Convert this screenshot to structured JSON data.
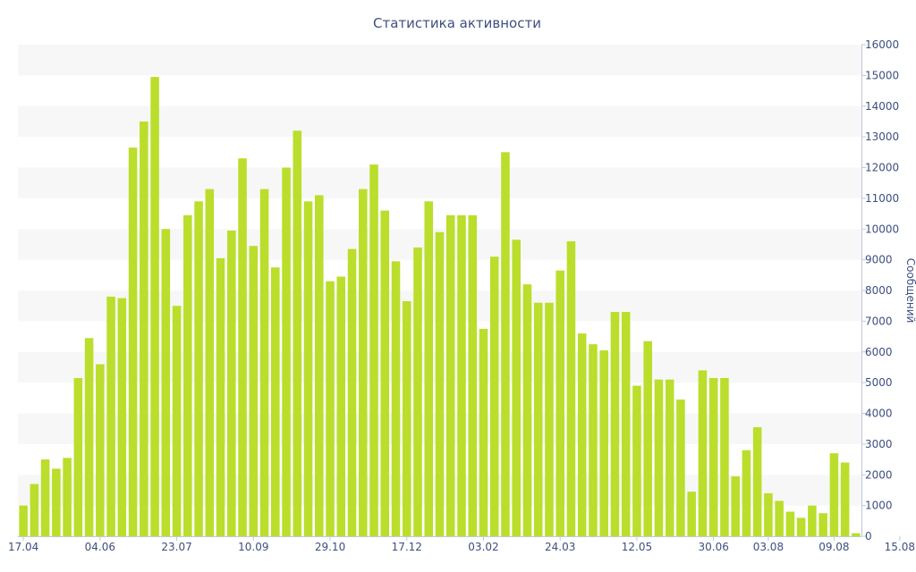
{
  "chart_data": {
    "type": "bar",
    "title": "Статистика активности",
    "ylabel": "Сообщений",
    "xlabel": "",
    "y_axis_position": "right",
    "ylim": [
      0,
      16000
    ],
    "y_ticks": [
      0,
      1000,
      2000,
      3000,
      4000,
      5000,
      6000,
      7000,
      8000,
      9000,
      10000,
      11000,
      12000,
      13000,
      14000,
      15000,
      16000
    ],
    "x_tick_labels": [
      {
        "label": "17.04",
        "index": 0
      },
      {
        "label": "04.06",
        "index": 7
      },
      {
        "label": "23.07",
        "index": 14
      },
      {
        "label": "10.09",
        "index": 21
      },
      {
        "label": "29.10",
        "index": 28
      },
      {
        "label": "17.12",
        "index": 35
      },
      {
        "label": "03.02",
        "index": 42
      },
      {
        "label": "24.03",
        "index": 49
      },
      {
        "label": "12.05",
        "index": 56
      },
      {
        "label": "30.06",
        "index": 63
      },
      {
        "label": "03.08",
        "index": 68
      },
      {
        "label": "09.08",
        "index": 74
      },
      {
        "label": "15.08",
        "index": 80
      }
    ],
    "grid": "alternating horizontal bands",
    "legend": "none",
    "bar_color": "#bade2b",
    "band_color": "#f7f7f7",
    "text_color": "#3e4f80",
    "values": [
      1000,
      1700,
      2500,
      2200,
      2550,
      5150,
      6450,
      5600,
      7800,
      7750,
      12650,
      13500,
      14950,
      10000,
      7500,
      10450,
      10900,
      11300,
      9050,
      9950,
      12300,
      9450,
      11300,
      8750,
      12000,
      13200,
      10900,
      11100,
      8300,
      8450,
      9350,
      11300,
      12100,
      10600,
      8950,
      7650,
      9400,
      10900,
      9900,
      10450,
      10450,
      10450,
      6750,
      9100,
      12500,
      9650,
      8200,
      7600,
      7600,
      8650,
      9600,
      6600,
      6250,
      6050,
      7300,
      7300,
      4900,
      6350,
      5100,
      5100,
      4450,
      1450,
      5400,
      5150,
      5150,
      1950,
      2800,
      3550,
      1400,
      1150,
      800,
      600,
      1000,
      750,
      2700,
      2400,
      100
    ]
  }
}
